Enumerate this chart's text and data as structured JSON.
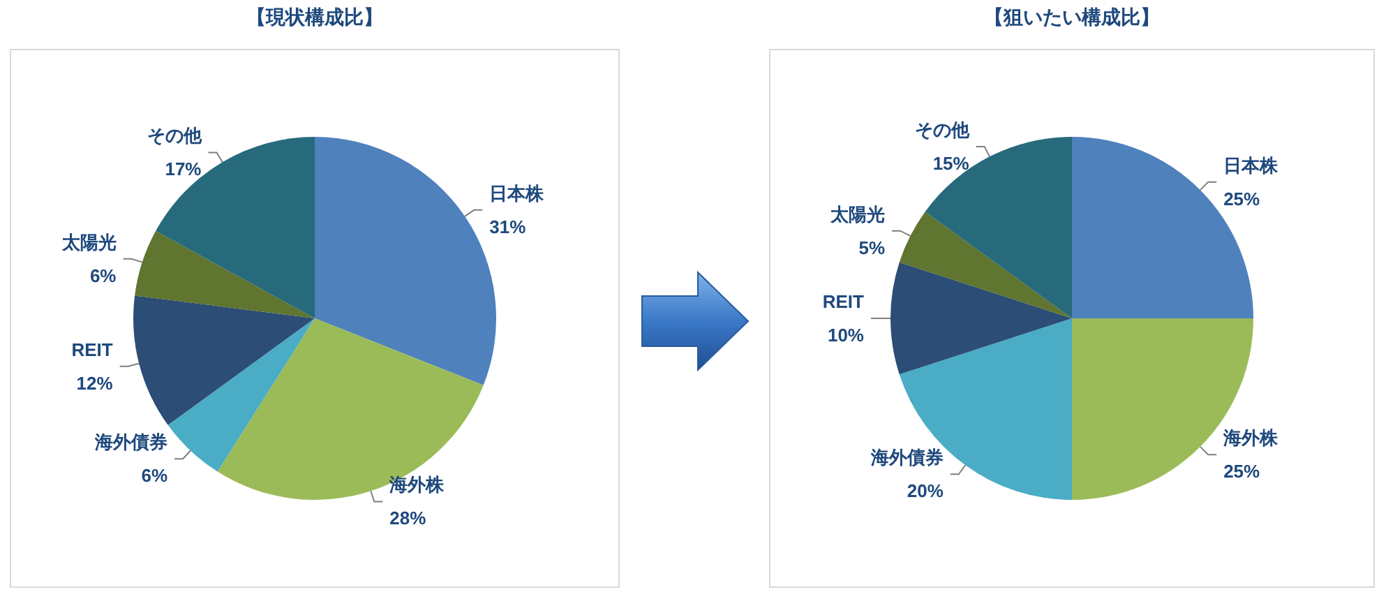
{
  "chart_data": [
    {
      "type": "pie",
      "title": "【現状構成比】",
      "categories": [
        "日本株",
        "海外株",
        "海外債券",
        "REIT",
        "太陽光",
        "その他"
      ],
      "values": [
        31,
        28,
        6,
        12,
        6,
        17
      ],
      "colors": [
        "#4f81bd",
        "#9bbb59",
        "#4bacc6",
        "#2c4d75",
        "#5f7530",
        "#276a7c"
      ],
      "value_labels": [
        "31%",
        "28%",
        "6%",
        "12%",
        "6%",
        "17%"
      ],
      "legend": false
    },
    {
      "type": "pie",
      "title": "【狙いたい構成比】",
      "categories": [
        "日本株",
        "海外株",
        "海外債券",
        "REIT",
        "太陽光",
        "その他"
      ],
      "values": [
        25,
        25,
        20,
        10,
        5,
        15
      ],
      "colors": [
        "#4f81bd",
        "#9bbb59",
        "#4bacc6",
        "#2c4d75",
        "#5f7530",
        "#276a7c"
      ],
      "value_labels": [
        "25%",
        "25%",
        "20%",
        "10%",
        "5%",
        "15%"
      ],
      "legend": false
    }
  ]
}
